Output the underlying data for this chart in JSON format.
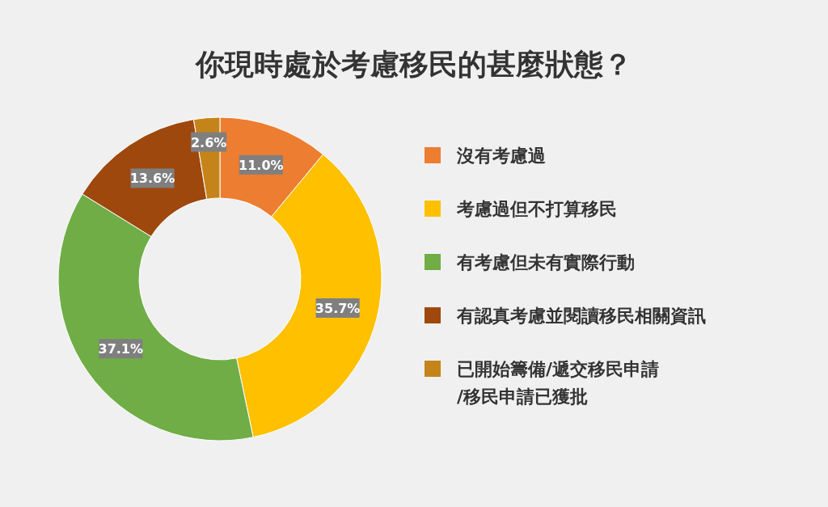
{
  "chart_data": {
    "type": "donut",
    "title": "你現時處於考慮移民的甚麼狀態？",
    "categories": [
      "沒有考慮過",
      "考慮過但不打算移民",
      "有考慮但未有實際行動",
      "有認真考慮並閱讀移民相關資訊",
      "已開始籌備/遞交移民申請/移民申請已獲批"
    ],
    "values": [
      11.0,
      35.7,
      37.1,
      13.6,
      2.6
    ],
    "colors": [
      "#ed7d31",
      "#ffc000",
      "#70ad47",
      "#9e480e",
      "#c5841a"
    ],
    "value_labels": [
      "11.0%",
      "35.7%",
      "37.1%",
      "13.6%",
      "2.6%"
    ],
    "legend": "right"
  }
}
